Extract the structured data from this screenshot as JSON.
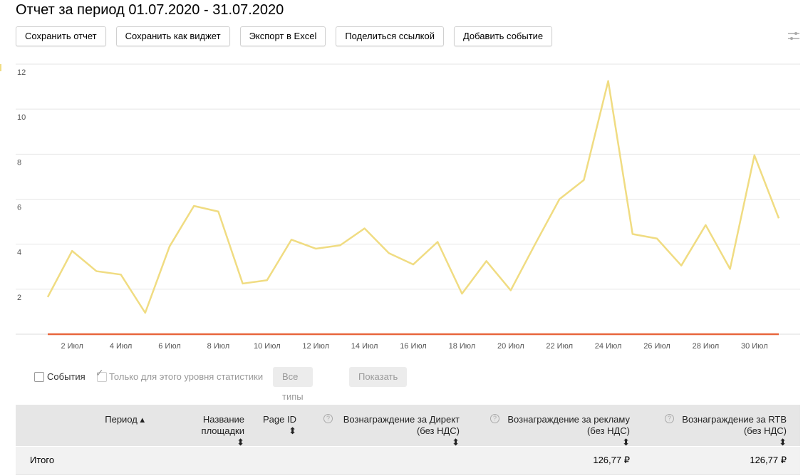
{
  "header": {
    "title": "Отчет за период 01.07.2020 - 31.07.2020"
  },
  "toolbar": {
    "buttons": [
      "Сохранить отчет",
      "Сохранить как виджет",
      "Экспорт в Excel",
      "Поделиться ссылкой",
      "Добавить событие"
    ]
  },
  "chart_data": {
    "type": "line",
    "categories": [
      null,
      "2 Июл",
      null,
      "4 Июл",
      null,
      "6 Июл",
      null,
      "8 Июл",
      null,
      "10 Июл",
      null,
      "12 Июл",
      null,
      "14 Июл",
      null,
      "16 Июл",
      null,
      "18 Июл",
      null,
      "20 Июл",
      null,
      "22 Июл",
      null,
      "24 Июл",
      null,
      "26 Июл",
      null,
      "28 Июл",
      null,
      "30 Июл",
      null
    ],
    "series": [
      {
        "color": "#f0dc82",
        "values": [
          1.65,
          3.7,
          2.8,
          2.65,
          0.95,
          3.9,
          5.7,
          5.45,
          2.25,
          2.4,
          4.2,
          3.8,
          3.95,
          4.7,
          3.6,
          3.1,
          4.1,
          1.8,
          3.25,
          1.95,
          4.0,
          6.0,
          6.85,
          11.25,
          4.45,
          4.25,
          3.05,
          4.85,
          2.9,
          7.95,
          5.15
        ]
      },
      {
        "color": "#e8663d",
        "values": [
          0,
          0,
          0,
          0,
          0,
          0,
          0,
          0,
          0,
          0,
          0,
          0,
          0,
          0,
          0,
          0,
          0,
          0,
          0,
          0,
          0,
          0,
          0,
          0,
          0,
          0,
          0,
          0,
          0,
          0,
          0
        ]
      }
    ],
    "ylim": [
      0,
      12
    ],
    "yticks": [
      2,
      4,
      6,
      8,
      10,
      12
    ],
    "grid": true
  },
  "filters": {
    "events_label": "События",
    "level_label": "Только для этого уровня статистики",
    "types_button": "Все типы",
    "show_button": "Показать"
  },
  "table": {
    "headers": [
      "Период",
      "Название площадки",
      "Page ID",
      "Вознаграждение за Директ (без НДС)",
      "Вознаграждение за рекламу (без НДС)",
      "Вознаграждение за RTB (без НДС)"
    ],
    "total": {
      "label": "Итого",
      "values": [
        "126,77 ₽",
        "126,77 ₽"
      ]
    }
  }
}
